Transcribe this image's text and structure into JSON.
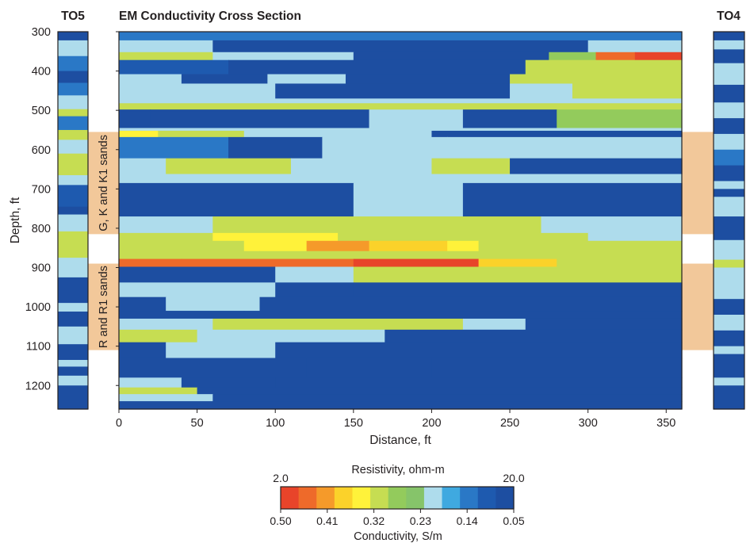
{
  "chart_data": {
    "type": "heatmap",
    "title": "EM Conductivity Cross Section",
    "xlabel": "Distance, ft",
    "ylabel": "Depth, ft",
    "xlim": [
      0,
      360
    ],
    "ylim": [
      300,
      1260
    ],
    "x_ticks": [
      0,
      50,
      100,
      150,
      200,
      250,
      300,
      350
    ],
    "y_ticks": [
      300,
      400,
      500,
      600,
      700,
      800,
      900,
      1000,
      1100,
      1200
    ],
    "well_left": "TO5",
    "well_right": "TO4",
    "sand_zones": [
      {
        "label": "G, K and K1 sands",
        "top": 555,
        "bottom": 815
      },
      {
        "label": "R and R1 sands",
        "top": 890,
        "bottom": 1110
      }
    ],
    "colorbar": {
      "resistivity_title": "Resistivity, ohm-m",
      "resistivity_min": "2.0",
      "resistivity_max": "20.0",
      "conductivity_title": "Conductivity, S/m",
      "conductivity_ticks": [
        "0.50",
        "0.41",
        "0.32",
        "0.23",
        "0.14",
        "0.05"
      ],
      "conductivity_values": [
        0.5,
        0.41,
        0.32,
        0.23,
        0.14,
        0.05
      ],
      "colors": [
        "#e8442a",
        "#ee6a2a",
        "#f59a2a",
        "#fbd22a",
        "#fff23a",
        "#c6dd52",
        "#93cb5c",
        "#86c46a",
        "#aedcec",
        "#3fa9e0",
        "#2a78c6",
        "#1e5aaf",
        "#1d4ea1"
      ]
    },
    "layers": [
      {
        "top": 300,
        "bottom": 322,
        "segments": [
          {
            "to": 360,
            "v": 0.13
          }
        ]
      },
      {
        "top": 322,
        "bottom": 352,
        "segments": [
          {
            "to": 60,
            "v": 0.22
          },
          {
            "to": 300,
            "v": 0.07
          },
          {
            "to": 360,
            "v": 0.22
          }
        ]
      },
      {
        "top": 352,
        "bottom": 372,
        "segments": [
          {
            "to": 60,
            "v": 0.3
          },
          {
            "to": 150,
            "v": 0.22
          },
          {
            "to": 275,
            "v": 0.07
          },
          {
            "to": 305,
            "v": 0.29
          },
          {
            "to": 330,
            "v": 0.44
          },
          {
            "to": 360,
            "v": 0.49
          }
        ]
      },
      {
        "top": 372,
        "bottom": 408,
        "segments": [
          {
            "to": 70,
            "v": 0.09
          },
          {
            "to": 260,
            "v": 0.06
          },
          {
            "to": 360,
            "v": 0.3
          }
        ]
      },
      {
        "top": 408,
        "bottom": 432,
        "segments": [
          {
            "to": 40,
            "v": 0.22
          },
          {
            "to": 95,
            "v": 0.07
          },
          {
            "to": 145,
            "v": 0.22
          },
          {
            "to": 250,
            "v": 0.06
          },
          {
            "to": 360,
            "v": 0.3
          }
        ]
      },
      {
        "top": 432,
        "bottom": 470,
        "segments": [
          {
            "to": 100,
            "v": 0.22
          },
          {
            "to": 250,
            "v": 0.07
          },
          {
            "to": 290,
            "v": 0.22
          },
          {
            "to": 360,
            "v": 0.3
          }
        ]
      },
      {
        "top": 470,
        "bottom": 482,
        "segments": [
          {
            "to": 360,
            "v": 0.22
          }
        ]
      },
      {
        "top": 482,
        "bottom": 498,
        "segments": [
          {
            "to": 360,
            "v": 0.3
          }
        ]
      },
      {
        "top": 498,
        "bottom": 545,
        "segments": [
          {
            "to": 20,
            "v": 0.07
          },
          {
            "to": 160,
            "v": 0.06
          },
          {
            "to": 220,
            "v": 0.22
          },
          {
            "to": 280,
            "v": 0.07
          },
          {
            "to": 360,
            "v": 0.29
          }
        ]
      },
      {
        "top": 545,
        "bottom": 552,
        "segments": [
          {
            "to": 360,
            "v": 0.22
          }
        ]
      },
      {
        "top": 552,
        "bottom": 568,
        "segments": [
          {
            "to": 25,
            "v": 0.36
          },
          {
            "to": 80,
            "v": 0.3
          },
          {
            "to": 200,
            "v": 0.22
          },
          {
            "to": 360,
            "v": 0.07
          }
        ]
      },
      {
        "top": 568,
        "bottom": 622,
        "segments": [
          {
            "to": 70,
            "v": 0.12
          },
          {
            "to": 130,
            "v": 0.07
          },
          {
            "to": 210,
            "v": 0.22
          },
          {
            "to": 360,
            "v": 0.22
          }
        ]
      },
      {
        "top": 622,
        "bottom": 662,
        "segments": [
          {
            "to": 30,
            "v": 0.22
          },
          {
            "to": 110,
            "v": 0.3
          },
          {
            "to": 200,
            "v": 0.22
          },
          {
            "to": 250,
            "v": 0.3
          },
          {
            "to": 360,
            "v": 0.07
          }
        ]
      },
      {
        "top": 662,
        "bottom": 685,
        "segments": [
          {
            "to": 120,
            "v": 0.22
          },
          {
            "to": 210,
            "v": 0.21
          },
          {
            "to": 360,
            "v": 0.22
          }
        ]
      },
      {
        "top": 685,
        "bottom": 770,
        "segments": [
          {
            "to": 150,
            "v": 0.07
          },
          {
            "to": 200,
            "v": 0.2
          },
          {
            "to": 220,
            "v": 0.22
          },
          {
            "to": 360,
            "v": 0.06
          }
        ]
      },
      {
        "top": 770,
        "bottom": 812,
        "segments": [
          {
            "to": 60,
            "v": 0.22
          },
          {
            "to": 270,
            "v": 0.3
          },
          {
            "to": 360,
            "v": 0.22
          }
        ]
      },
      {
        "top": 812,
        "bottom": 832,
        "segments": [
          {
            "to": 60,
            "v": 0.3
          },
          {
            "to": 140,
            "v": 0.34
          },
          {
            "to": 300,
            "v": 0.3
          },
          {
            "to": 360,
            "v": 0.22
          }
        ]
      },
      {
        "top": 832,
        "bottom": 858,
        "segments": [
          {
            "to": 80,
            "v": 0.3
          },
          {
            "to": 120,
            "v": 0.34
          },
          {
            "to": 160,
            "v": 0.4
          },
          {
            "to": 210,
            "v": 0.38
          },
          {
            "to": 230,
            "v": 0.36
          },
          {
            "to": 360,
            "v": 0.3
          }
        ]
      },
      {
        "top": 858,
        "bottom": 878,
        "segments": [
          {
            "to": 90,
            "v": 0.3
          },
          {
            "to": 250,
            "v": 0.32
          },
          {
            "to": 360,
            "v": 0.3
          }
        ]
      },
      {
        "top": 878,
        "bottom": 898,
        "segments": [
          {
            "to": 40,
            "v": 0.45
          },
          {
            "to": 150,
            "v": 0.46
          },
          {
            "to": 230,
            "v": 0.48
          },
          {
            "to": 280,
            "v": 0.38
          },
          {
            "to": 360,
            "v": 0.3
          }
        ]
      },
      {
        "top": 898,
        "bottom": 938,
        "segments": [
          {
            "to": 100,
            "v": 0.07
          },
          {
            "to": 150,
            "v": 0.22
          },
          {
            "to": 290,
            "v": 0.3
          },
          {
            "to": 360,
            "v": 0.3
          }
        ]
      },
      {
        "top": 938,
        "bottom": 975,
        "segments": [
          {
            "to": 100,
            "v": 0.22
          },
          {
            "to": 150,
            "v": 0.07
          },
          {
            "to": 360,
            "v": 0.06
          }
        ]
      },
      {
        "top": 975,
        "bottom": 1010,
        "segments": [
          {
            "to": 30,
            "v": 0.07
          },
          {
            "to": 90,
            "v": 0.22
          },
          {
            "to": 360,
            "v": 0.06
          }
        ]
      },
      {
        "top": 1010,
        "bottom": 1030,
        "segments": [
          {
            "to": 80,
            "v": 0.07
          },
          {
            "to": 360,
            "v": 0.06
          }
        ]
      },
      {
        "top": 1030,
        "bottom": 1058,
        "segments": [
          {
            "to": 60,
            "v": 0.22
          },
          {
            "to": 220,
            "v": 0.3
          },
          {
            "to": 260,
            "v": 0.22
          },
          {
            "to": 360,
            "v": 0.06
          }
        ]
      },
      {
        "top": 1058,
        "bottom": 1090,
        "segments": [
          {
            "to": 50,
            "v": 0.3
          },
          {
            "to": 170,
            "v": 0.22
          },
          {
            "to": 360,
            "v": 0.06
          }
        ]
      },
      {
        "top": 1090,
        "bottom": 1130,
        "segments": [
          {
            "to": 30,
            "v": 0.07
          },
          {
            "to": 100,
            "v": 0.22
          },
          {
            "to": 360,
            "v": 0.06
          }
        ]
      },
      {
        "top": 1130,
        "bottom": 1180,
        "segments": [
          {
            "to": 120,
            "v": 0.07
          },
          {
            "to": 200,
            "v": 0.06
          },
          {
            "to": 360,
            "v": 0.05
          }
        ]
      },
      {
        "top": 1180,
        "bottom": 1205,
        "segments": [
          {
            "to": 40,
            "v": 0.22
          },
          {
            "to": 100,
            "v": 0.07
          },
          {
            "to": 360,
            "v": 0.06
          }
        ]
      },
      {
        "top": 1205,
        "bottom": 1222,
        "segments": [
          {
            "to": 50,
            "v": 0.3
          },
          {
            "to": 360,
            "v": 0.07
          }
        ]
      },
      {
        "top": 1222,
        "bottom": 1240,
        "segments": [
          {
            "to": 60,
            "v": 0.22
          },
          {
            "to": 360,
            "v": 0.06
          }
        ]
      },
      {
        "top": 1240,
        "bottom": 1260,
        "segments": [
          {
            "to": 360,
            "v": 0.07
          }
        ]
      }
    ],
    "well_logs": [
      {
        "name": "TO5",
        "bands": [
          {
            "top": 300,
            "bottom": 322,
            "v": 0.07
          },
          {
            "top": 322,
            "bottom": 345,
            "v": 0.2
          },
          {
            "top": 345,
            "bottom": 362,
            "v": 0.22
          },
          {
            "top": 362,
            "bottom": 400,
            "v": 0.12
          },
          {
            "top": 400,
            "bottom": 430,
            "v": 0.07
          },
          {
            "top": 430,
            "bottom": 462,
            "v": 0.12
          },
          {
            "top": 462,
            "bottom": 497,
            "v": 0.22
          },
          {
            "top": 497,
            "bottom": 515,
            "v": 0.3
          },
          {
            "top": 515,
            "bottom": 550,
            "v": 0.12
          },
          {
            "top": 550,
            "bottom": 575,
            "v": 0.3
          },
          {
            "top": 575,
            "bottom": 610,
            "v": 0.22
          },
          {
            "top": 610,
            "bottom": 665,
            "v": 0.3
          },
          {
            "top": 665,
            "bottom": 690,
            "v": 0.22
          },
          {
            "top": 690,
            "bottom": 745,
            "v": 0.1
          },
          {
            "top": 745,
            "bottom": 765,
            "v": 0.07
          },
          {
            "top": 765,
            "bottom": 808,
            "v": 0.22
          },
          {
            "top": 808,
            "bottom": 875,
            "v": 0.3
          },
          {
            "top": 875,
            "bottom": 925,
            "v": 0.22
          },
          {
            "top": 925,
            "bottom": 990,
            "v": 0.07
          },
          {
            "top": 990,
            "bottom": 1012,
            "v": 0.22
          },
          {
            "top": 1012,
            "bottom": 1050,
            "v": 0.07
          },
          {
            "top": 1050,
            "bottom": 1095,
            "v": 0.22
          },
          {
            "top": 1095,
            "bottom": 1135,
            "v": 0.06
          },
          {
            "top": 1135,
            "bottom": 1152,
            "v": 0.22
          },
          {
            "top": 1152,
            "bottom": 1175,
            "v": 0.07
          },
          {
            "top": 1175,
            "bottom": 1200,
            "v": 0.22
          },
          {
            "top": 1200,
            "bottom": 1260,
            "v": 0.06
          }
        ]
      },
      {
        "name": "TO4",
        "bands": [
          {
            "top": 300,
            "bottom": 322,
            "v": 0.07
          },
          {
            "top": 322,
            "bottom": 345,
            "v": 0.22
          },
          {
            "top": 345,
            "bottom": 380,
            "v": 0.07
          },
          {
            "top": 380,
            "bottom": 435,
            "v": 0.22
          },
          {
            "top": 435,
            "bottom": 480,
            "v": 0.07
          },
          {
            "top": 480,
            "bottom": 520,
            "v": 0.22
          },
          {
            "top": 520,
            "bottom": 560,
            "v": 0.07
          },
          {
            "top": 560,
            "bottom": 600,
            "v": 0.22
          },
          {
            "top": 600,
            "bottom": 640,
            "v": 0.12
          },
          {
            "top": 640,
            "bottom": 680,
            "v": 0.06
          },
          {
            "top": 680,
            "bottom": 700,
            "v": 0.22
          },
          {
            "top": 700,
            "bottom": 720,
            "v": 0.07
          },
          {
            "top": 720,
            "bottom": 770,
            "v": 0.22
          },
          {
            "top": 770,
            "bottom": 830,
            "v": 0.07
          },
          {
            "top": 830,
            "bottom": 880,
            "v": 0.22
          },
          {
            "top": 880,
            "bottom": 900,
            "v": 0.3
          },
          {
            "top": 900,
            "bottom": 980,
            "v": 0.22
          },
          {
            "top": 980,
            "bottom": 1020,
            "v": 0.07
          },
          {
            "top": 1020,
            "bottom": 1060,
            "v": 0.22
          },
          {
            "top": 1060,
            "bottom": 1100,
            "v": 0.07
          },
          {
            "top": 1100,
            "bottom": 1120,
            "v": 0.22
          },
          {
            "top": 1120,
            "bottom": 1180,
            "v": 0.06
          },
          {
            "top": 1180,
            "bottom": 1200,
            "v": 0.22
          },
          {
            "top": 1200,
            "bottom": 1260,
            "v": 0.06
          }
        ]
      }
    ]
  }
}
